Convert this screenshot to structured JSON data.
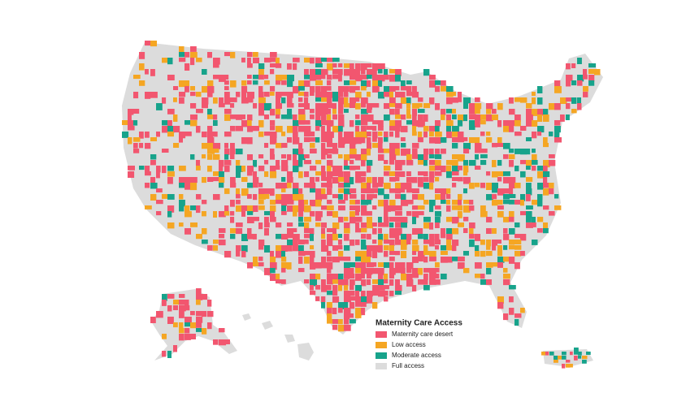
{
  "legend": {
    "title": "Maternity Care Access",
    "items": [
      {
        "label": "Maternity care desert",
        "color": "#f2566f"
      },
      {
        "label": "Low access",
        "color": "#f5a623"
      },
      {
        "label": "Moderate access",
        "color": "#17a38b"
      },
      {
        "label": "Full access",
        "color": "#dcdcdc"
      }
    ]
  }
}
